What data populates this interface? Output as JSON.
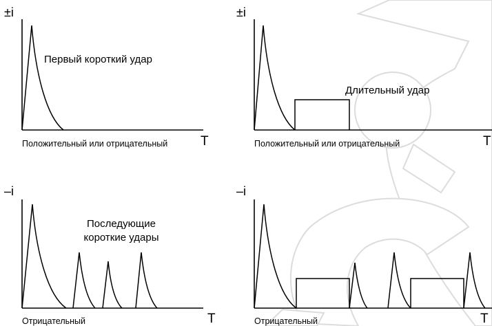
{
  "panels": [
    {
      "id": "top-left",
      "y_axis_label": "±i",
      "x_axis_label": "T",
      "caption": "Положительный или отрицательный",
      "title_lines": [
        "Первый короткий удар"
      ]
    },
    {
      "id": "top-right",
      "y_axis_label": "±i",
      "x_axis_label": "T",
      "caption": "Положительный или отрицательный",
      "title_lines": [
        "Длительный удар"
      ]
    },
    {
      "id": "bottom-left",
      "y_axis_label": "–i",
      "x_axis_label": "T",
      "caption": "Отрицательный",
      "title_lines": [
        "Последующие",
        "короткие удары"
      ]
    },
    {
      "id": "bottom-right",
      "y_axis_label": "–i",
      "x_axis_label": "T",
      "caption": "Отрицательный",
      "title_lines": []
    }
  ],
  "colors": {
    "line": "#000000",
    "background": "#ffffff",
    "watermark_outline": "#dcdcdc"
  }
}
